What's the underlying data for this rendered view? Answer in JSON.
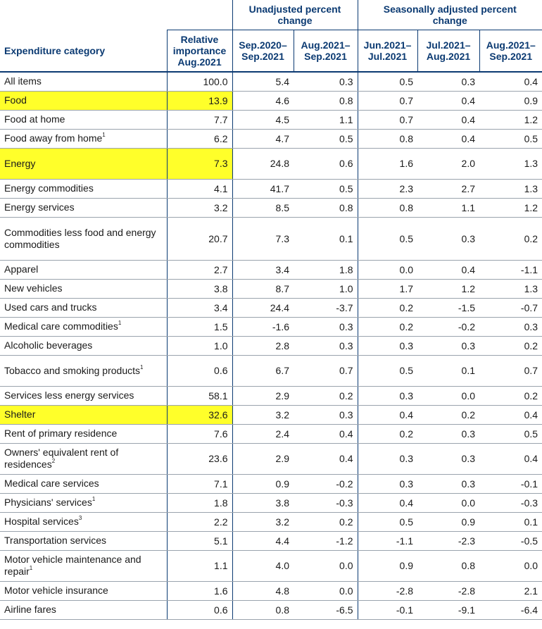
{
  "header": {
    "category_label": "Expenditure category",
    "relative_importance": [
      "Relative",
      "importance",
      "Aug.2021"
    ],
    "unadjusted_group": [
      "Unadjusted percent",
      "change"
    ],
    "seasonal_group": [
      "Seasonally adjusted percent",
      "change"
    ],
    "columns": [
      [
        "Sep.2020–",
        "Sep.2021"
      ],
      [
        "Aug.2021–",
        "Sep.2021"
      ],
      [
        "Jun.2021–",
        "Jul.2021"
      ],
      [
        "Jul.2021–",
        "Aug.2021"
      ],
      [
        "Aug.2021–",
        "Sep.2021"
      ]
    ]
  },
  "highlight_color": "#ffff2a",
  "header_color": "#0b3a72",
  "rows": [
    {
      "label": "All items",
      "note": "",
      "values": [
        "100.0",
        "5.4",
        "0.3",
        "0.5",
        "0.3",
        "0.4"
      ],
      "highlight": false,
      "gap": false
    },
    {
      "label": "Food",
      "note": "",
      "values": [
        "13.9",
        "4.6",
        "0.8",
        "0.7",
        "0.4",
        "0.9"
      ],
      "highlight": true,
      "gap": false
    },
    {
      "label": "Food at home",
      "note": "",
      "values": [
        "7.7",
        "4.5",
        "1.1",
        "0.7",
        "0.4",
        "1.2"
      ],
      "highlight": false,
      "gap": false
    },
    {
      "label": "Food away from home",
      "note": "1",
      "values": [
        "6.2",
        "4.7",
        "0.5",
        "0.8",
        "0.4",
        "0.5"
      ],
      "highlight": false,
      "gap": false
    },
    {
      "label": "Energy",
      "note": "",
      "values": [
        "7.3",
        "24.8",
        "0.6",
        "1.6",
        "2.0",
        "1.3"
      ],
      "highlight": true,
      "gap": true
    },
    {
      "label": "Energy commodities",
      "note": "",
      "values": [
        "4.1",
        "41.7",
        "0.5",
        "2.3",
        "2.7",
        "1.3"
      ],
      "highlight": false,
      "gap": false
    },
    {
      "label": "Energy services",
      "note": "",
      "values": [
        "3.2",
        "8.5",
        "0.8",
        "0.8",
        "1.1",
        "1.2"
      ],
      "highlight": false,
      "gap": false
    },
    {
      "label": "Commodities less food and energy commodities",
      "note": "",
      "values": [
        "20.7",
        "7.3",
        "0.1",
        "0.5",
        "0.3",
        "0.2"
      ],
      "highlight": false,
      "gap": true
    },
    {
      "label": "Apparel",
      "note": "",
      "values": [
        "2.7",
        "3.4",
        "1.8",
        "0.0",
        "0.4",
        "-1.1"
      ],
      "highlight": false,
      "gap": false
    },
    {
      "label": "New vehicles",
      "note": "",
      "values": [
        "3.8",
        "8.7",
        "1.0",
        "1.7",
        "1.2",
        "1.3"
      ],
      "highlight": false,
      "gap": false
    },
    {
      "label": "Used cars and trucks",
      "note": "",
      "values": [
        "3.4",
        "24.4",
        "-3.7",
        "0.2",
        "-1.5",
        "-0.7"
      ],
      "highlight": false,
      "gap": false
    },
    {
      "label": "Medical care commodities",
      "note": "1",
      "values": [
        "1.5",
        "-1.6",
        "0.3",
        "0.2",
        "-0.2",
        "0.3"
      ],
      "highlight": false,
      "gap": false
    },
    {
      "label": "Alcoholic beverages",
      "note": "",
      "values": [
        "1.0",
        "2.8",
        "0.3",
        "0.3",
        "0.3",
        "0.2"
      ],
      "highlight": false,
      "gap": false
    },
    {
      "label": "Tobacco and smoking products",
      "note": "1",
      "values": [
        "0.6",
        "6.7",
        "0.7",
        "0.5",
        "0.1",
        "0.7"
      ],
      "highlight": false,
      "gap": false
    },
    {
      "label": "Services less energy services",
      "note": "",
      "values": [
        "58.1",
        "2.9",
        "0.2",
        "0.3",
        "0.0",
        "0.2"
      ],
      "highlight": false,
      "gap": false
    },
    {
      "label": "Shelter",
      "note": "",
      "values": [
        "32.6",
        "3.2",
        "0.3",
        "0.4",
        "0.2",
        "0.4"
      ],
      "highlight": true,
      "gap": false
    },
    {
      "label": "Rent of primary residence",
      "note": "",
      "values": [
        "7.6",
        "2.4",
        "0.4",
        "0.2",
        "0.3",
        "0.5"
      ],
      "highlight": false,
      "gap": false
    },
    {
      "label": "Owners' equivalent rent of residences",
      "note": "2",
      "values": [
        "23.6",
        "2.9",
        "0.4",
        "0.3",
        "0.3",
        "0.4"
      ],
      "highlight": false,
      "gap": false
    },
    {
      "label": "Medical care services",
      "note": "",
      "values": [
        "7.1",
        "0.9",
        "-0.2",
        "0.3",
        "0.3",
        "-0.1"
      ],
      "highlight": false,
      "gap": false
    },
    {
      "label": "Physicians' services",
      "note": "1",
      "values": [
        "1.8",
        "3.8",
        "-0.3",
        "0.4",
        "0.0",
        "-0.3"
      ],
      "highlight": false,
      "gap": false
    },
    {
      "label": "Hospital services",
      "note": "3",
      "values": [
        "2.2",
        "3.2",
        "0.2",
        "0.5",
        "0.9",
        "0.1"
      ],
      "highlight": false,
      "gap": false
    },
    {
      "label": "Transportation services",
      "note": "",
      "values": [
        "5.1",
        "4.4",
        "-1.2",
        "-1.1",
        "-2.3",
        "-0.5"
      ],
      "highlight": false,
      "gap": false
    },
    {
      "label": "Motor vehicle maintenance and repair",
      "note": "1",
      "values": [
        "1.1",
        "4.0",
        "0.0",
        "0.9",
        "0.8",
        "0.0"
      ],
      "highlight": false,
      "gap": false
    },
    {
      "label": "Motor vehicle insurance",
      "note": "",
      "values": [
        "1.6",
        "4.8",
        "0.0",
        "-2.8",
        "-2.8",
        "2.1"
      ],
      "highlight": false,
      "gap": false
    },
    {
      "label": "Airline fares",
      "note": "",
      "values": [
        "0.6",
        "0.8",
        "-6.5",
        "-0.1",
        "-9.1",
        "-6.4"
      ],
      "highlight": false,
      "gap": false
    }
  ]
}
